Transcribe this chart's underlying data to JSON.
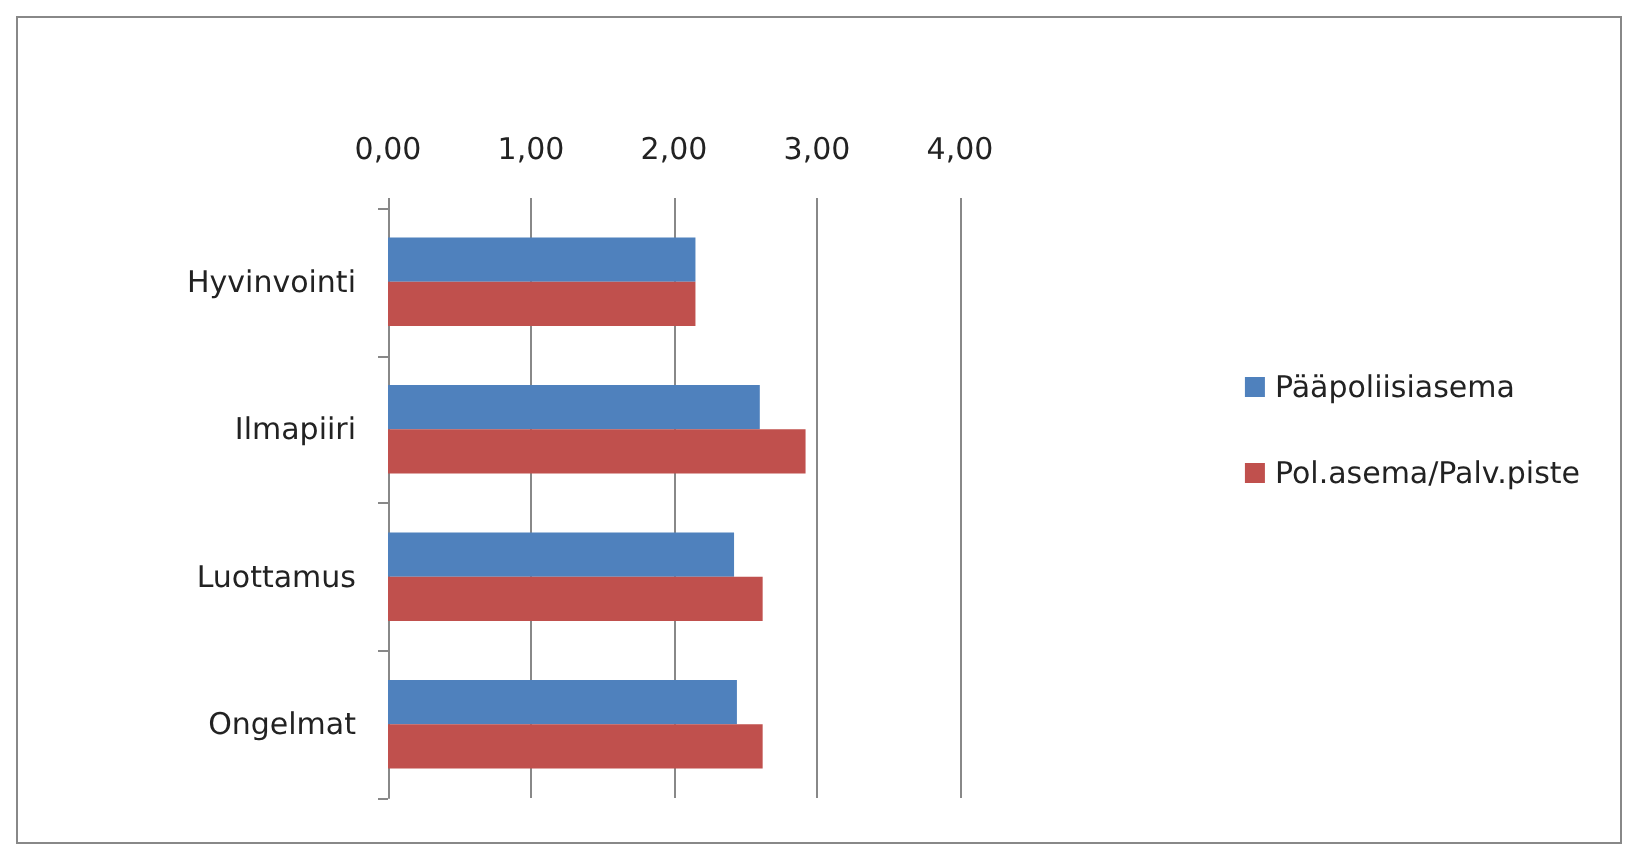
{
  "chart_data": {
    "type": "bar",
    "orientation": "horizontal",
    "categories": [
      "Hyvinvointi",
      "Ilmapiiri",
      "Luottamus",
      "Ongelmat"
    ],
    "series": [
      {
        "name": "Pääpoliisiasema",
        "color": "#4f81bd",
        "values": [
          2.15,
          2.6,
          2.42,
          2.44
        ]
      },
      {
        "name": "Pol.asema/Palv.piste",
        "color": "#c0504d",
        "values": [
          2.15,
          2.92,
          2.62,
          2.62
        ]
      }
    ],
    "xlim": [
      0,
      4
    ],
    "xticks": [
      {
        "value": 0,
        "label": "0,00"
      },
      {
        "value": 1,
        "label": "1,00"
      },
      {
        "value": 2,
        "label": "2,00"
      },
      {
        "value": 3,
        "label": "3,00"
      },
      {
        "value": 4,
        "label": "4,00"
      }
    ],
    "grid": "x",
    "legend": "right"
  }
}
